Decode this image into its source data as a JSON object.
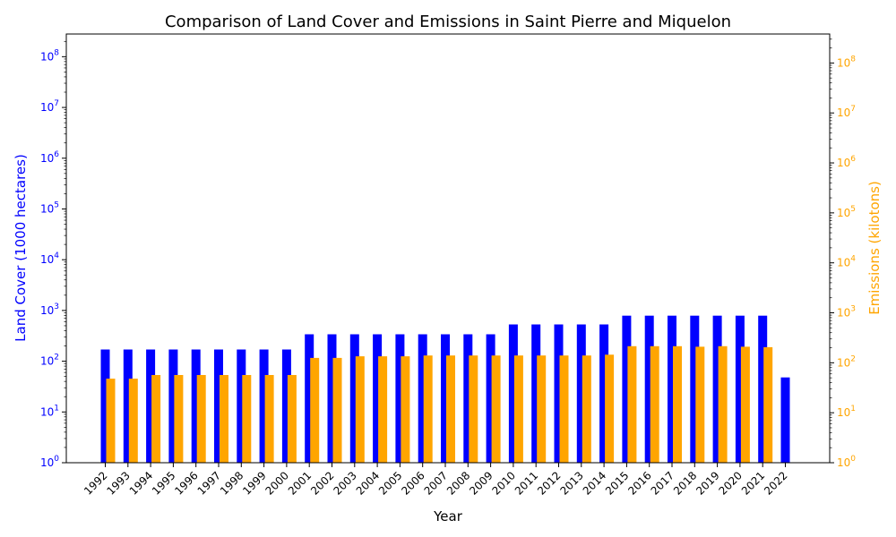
{
  "chart_data": {
    "type": "bar",
    "title": "Comparison of Land Cover and Emissions in Saint Pierre and Miquelon",
    "xlabel": "Year",
    "ylabel_left": "Land Cover (1000 hectares)",
    "ylabel_right": "Emissions (kilotons)",
    "yscale": "log",
    "ylim_left": [
      1,
      280000000
    ],
    "ylim_right": [
      1,
      380000000
    ],
    "y_ticks": [
      "10^0",
      "10^1",
      "10^2",
      "10^3",
      "10^4",
      "10^5",
      "10^6",
      "10^7",
      "10^8"
    ],
    "categories": [
      "1992",
      "1993",
      "1994",
      "1995",
      "1996",
      "1997",
      "1998",
      "1999",
      "2000",
      "2001",
      "2002",
      "2003",
      "2004",
      "2005",
      "2006",
      "2007",
      "2008",
      "2009",
      "2010",
      "2011",
      "2012",
      "2013",
      "2014",
      "2015",
      "2016",
      "2017",
      "2018",
      "2019",
      "2020",
      "2021",
      "2022"
    ],
    "series": [
      {
        "name": "Land Cover",
        "axis": "left",
        "color": "#0000ff",
        "values": [
          170,
          170,
          170,
          170,
          170,
          170,
          170,
          170,
          170,
          340,
          340,
          340,
          340,
          340,
          340,
          340,
          340,
          340,
          530,
          530,
          530,
          530,
          530,
          790,
          790,
          790,
          790,
          790,
          790,
          790,
          48
        ]
      },
      {
        "name": "Emissions",
        "axis": "right",
        "color": "#ffa500",
        "values": [
          48,
          48,
          57,
          57,
          57,
          57,
          57,
          57,
          57,
          125,
          125,
          135,
          135,
          135,
          140,
          140,
          140,
          140,
          140,
          140,
          140,
          140,
          145,
          215,
          215,
          215,
          210,
          215,
          210,
          205,
          null
        ]
      }
    ],
    "left_axis_color": "#0000ff",
    "right_axis_color": "#ffa500",
    "grid": false,
    "legend": "none"
  }
}
